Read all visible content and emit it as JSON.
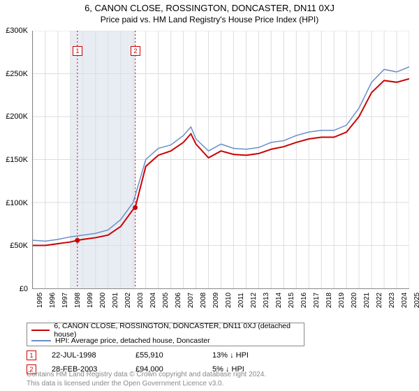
{
  "title": "6, CANON CLOSE, ROSSINGTON, DONCASTER, DN11 0XJ",
  "subtitle": "Price paid vs. HM Land Registry's House Price Index (HPI)",
  "chart": {
    "type": "line",
    "background_color": "#ffffff",
    "grid_color": "#dddddd",
    "highlight_band_color": "#e8edf4",
    "ylim": [
      0,
      300000
    ],
    "ytick_step": 50000,
    "yticks": [
      "£0",
      "£50K",
      "£100K",
      "£150K",
      "£200K",
      "£250K",
      "£300K"
    ],
    "xlim": [
      1995,
      2025
    ],
    "xticks": [
      1995,
      1996,
      1997,
      1998,
      1999,
      2000,
      2001,
      2002,
      2003,
      2004,
      2005,
      2006,
      2007,
      2008,
      2009,
      2010,
      2011,
      2012,
      2013,
      2014,
      2015,
      2016,
      2017,
      2018,
      2019,
      2020,
      2021,
      2022,
      2023,
      2024,
      2025
    ],
    "highlight_band": [
      1998,
      2003.2
    ],
    "series": [
      {
        "name": "6, CANON CLOSE, ROSSINGTON, DONCASTER, DN11 0XJ (detached house)",
        "color": "#cc0000",
        "width": 2,
        "data": [
          [
            1995,
            50000
          ],
          [
            1996,
            50000
          ],
          [
            1997,
            52000
          ],
          [
            1998,
            54000
          ],
          [
            1998.55,
            55910
          ],
          [
            1999,
            57000
          ],
          [
            2000,
            59000
          ],
          [
            2001,
            62000
          ],
          [
            2002,
            72000
          ],
          [
            2003,
            92000
          ],
          [
            2003.16,
            94000
          ],
          [
            2004,
            142000
          ],
          [
            2005,
            155000
          ],
          [
            2006,
            160000
          ],
          [
            2007,
            170000
          ],
          [
            2007.6,
            180000
          ],
          [
            2008,
            168000
          ],
          [
            2009,
            152000
          ],
          [
            2010,
            160000
          ],
          [
            2011,
            156000
          ],
          [
            2012,
            155000
          ],
          [
            2013,
            157000
          ],
          [
            2014,
            162000
          ],
          [
            2015,
            165000
          ],
          [
            2016,
            170000
          ],
          [
            2017,
            174000
          ],
          [
            2018,
            176000
          ],
          [
            2019,
            176000
          ],
          [
            2020,
            182000
          ],
          [
            2021,
            200000
          ],
          [
            2022,
            228000
          ],
          [
            2023,
            242000
          ],
          [
            2024,
            240000
          ],
          [
            2025,
            244000
          ]
        ]
      },
      {
        "name": "HPI: Average price, detached house, Doncaster",
        "color": "#6a8fc8",
        "width": 1.5,
        "data": [
          [
            1995,
            56000
          ],
          [
            1996,
            55000
          ],
          [
            1997,
            57000
          ],
          [
            1998,
            60000
          ],
          [
            1999,
            62000
          ],
          [
            2000,
            64000
          ],
          [
            2001,
            68000
          ],
          [
            2002,
            80000
          ],
          [
            2003,
            100000
          ],
          [
            2004,
            150000
          ],
          [
            2005,
            163000
          ],
          [
            2006,
            167000
          ],
          [
            2007,
            178000
          ],
          [
            2007.6,
            188000
          ],
          [
            2008,
            174000
          ],
          [
            2009,
            160000
          ],
          [
            2010,
            168000
          ],
          [
            2011,
            163000
          ],
          [
            2012,
            162000
          ],
          [
            2013,
            164000
          ],
          [
            2014,
            170000
          ],
          [
            2015,
            172000
          ],
          [
            2016,
            178000
          ],
          [
            2017,
            182000
          ],
          [
            2018,
            184000
          ],
          [
            2019,
            184000
          ],
          [
            2020,
            190000
          ],
          [
            2021,
            210000
          ],
          [
            2022,
            240000
          ],
          [
            2023,
            255000
          ],
          [
            2024,
            252000
          ],
          [
            2025,
            258000
          ]
        ]
      }
    ],
    "markers": [
      {
        "id": "1",
        "x": 1998.55,
        "y": 55910,
        "line_color": "#cc0000",
        "label_top_y": 282000
      },
      {
        "id": "2",
        "x": 2003.16,
        "y": 94000,
        "line_color": "#cc0000",
        "label_top_y": 282000
      }
    ]
  },
  "legend": {
    "items": [
      {
        "color": "#cc0000",
        "label": "6, CANON CLOSE, ROSSINGTON, DONCASTER, DN11 0XJ (detached house)"
      },
      {
        "color": "#6a8fc8",
        "label": "HPI: Average price, detached house, Doncaster"
      }
    ]
  },
  "transactions": [
    {
      "id": "1",
      "date": "22-JUL-1998",
      "price": "£55,910",
      "delta": "13% ↓ HPI"
    },
    {
      "id": "2",
      "date": "28-FEB-2003",
      "price": "£94,000",
      "delta": "5% ↓ HPI"
    }
  ],
  "footnote_line1": "Contains HM Land Registry data © Crown copyright and database right 2024.",
  "footnote_line2": "This data is licensed under the Open Government Licence v3.0."
}
